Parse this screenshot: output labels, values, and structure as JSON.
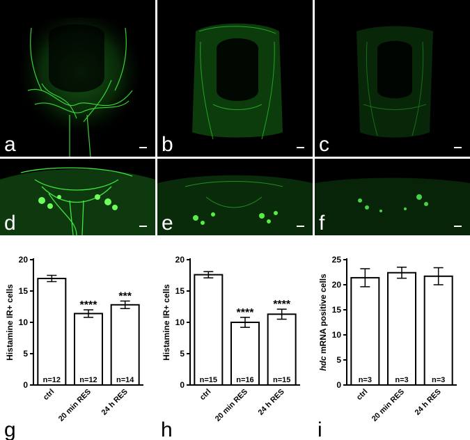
{
  "panels": [
    {
      "letter": "a"
    },
    {
      "letter": "b"
    },
    {
      "letter": "c"
    },
    {
      "letter": "d"
    },
    {
      "letter": "e"
    },
    {
      "letter": "f"
    }
  ],
  "colors": {
    "fluorescence": "#22cc22",
    "bright": "#66ff55",
    "background": "#000000",
    "bar_fill": "#ffffff",
    "ink": "#000000"
  },
  "chart_data": [
    {
      "type": "bar",
      "panel": "g",
      "ylabel": "Histamine IR+ cells",
      "ylabel_italic_prefix": "",
      "categories": [
        "ctrl",
        "20 min RES",
        "24 h RES"
      ],
      "values": [
        17.0,
        11.4,
        12.8
      ],
      "errors": [
        0.5,
        0.6,
        0.6
      ],
      "n_labels": [
        "n=12",
        "n=12",
        "n=14"
      ],
      "significance": [
        "",
        "****",
        "***"
      ],
      "ylim": [
        0,
        20
      ],
      "yticks": [
        0,
        5,
        10,
        15,
        20
      ]
    },
    {
      "type": "bar",
      "panel": "h",
      "ylabel": "Histamine IR+ cells",
      "ylabel_italic_prefix": "",
      "categories": [
        "ctrl",
        "20 min RES",
        "24 h RES"
      ],
      "values": [
        17.6,
        10.0,
        11.3
      ],
      "errors": [
        0.5,
        0.8,
        0.8
      ],
      "n_labels": [
        "n=15",
        "n=16",
        "n=15"
      ],
      "significance": [
        "",
        "****",
        "****"
      ],
      "ylim": [
        0,
        20
      ],
      "yticks": [
        0,
        5,
        10,
        15,
        20
      ]
    },
    {
      "type": "bar",
      "panel": "i",
      "ylabel": " mRNA positive cells",
      "ylabel_italic_prefix": "hdc",
      "categories": [
        "ctrl",
        "20 min RES",
        "24 h RES"
      ],
      "values": [
        21.4,
        22.4,
        21.7
      ],
      "errors": [
        1.8,
        1.1,
        1.7
      ],
      "n_labels": [
        "n=3",
        "n=3",
        "n=3"
      ],
      "significance": [
        "",
        "",
        ""
      ],
      "ylim": [
        0,
        25
      ],
      "yticks": [
        0,
        5,
        10,
        15,
        20,
        25
      ]
    }
  ]
}
